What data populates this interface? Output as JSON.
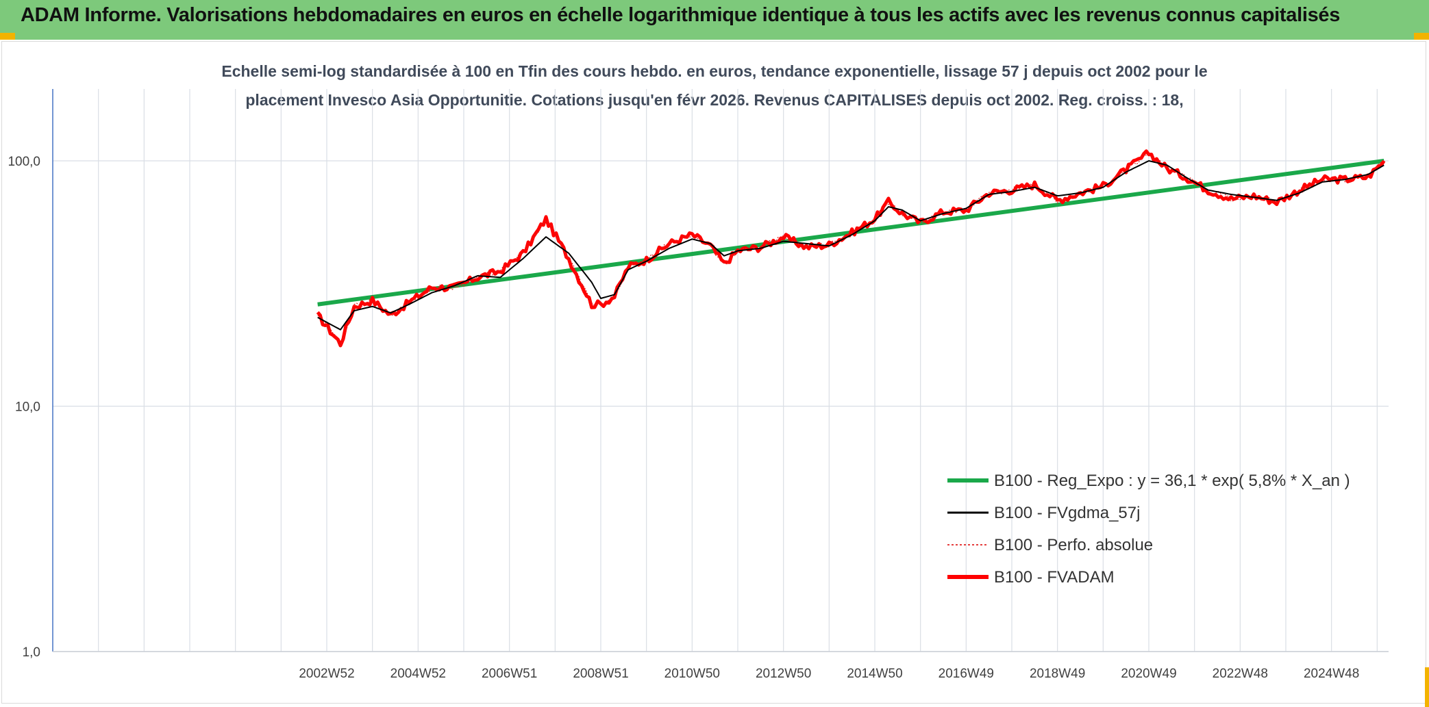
{
  "banner": {
    "title": "ADAM Informe. Valorisations hebdomadaires en euros en échelle logarithmique identique à tous les actifs avec les revenus connus capitalisés"
  },
  "colors": {
    "banner_bg": "#7dc97b",
    "accent_corner": "#f3b300",
    "reg_expo": "#1aa84a",
    "fvgdma": "#000000",
    "perfo": "#e02020",
    "fvadam": "#ff0000",
    "grid": "#d9dee5",
    "axis": "#4472c4"
  },
  "chart_data": {
    "type": "line",
    "subtitle_lines": [
      "Echelle semi-log standardisée à 100 en Tfin des cours hebdo. en euros, tendance exponentielle, lissage 57 j depuis oct 2002 pour le",
      "placement Invesco Asia Opportunitie. Cotations jusqu'en févr 2026. Revenus CAPITALISES depuis oct 2002. Reg. croiss. : 18,"
    ],
    "y_scale": "log",
    "ylim": [
      1,
      100
    ],
    "y_ticks": [
      {
        "value": 100,
        "label": "100,0"
      },
      {
        "value": 10,
        "label": "10,0"
      },
      {
        "value": 1,
        "label": "1,0"
      }
    ],
    "xlim": [
      1997.0,
      2026.25
    ],
    "x_ticks": [
      {
        "value": 2003.0,
        "label": "2002W52"
      },
      {
        "value": 2005.0,
        "label": "2004W52"
      },
      {
        "value": 2007.0,
        "label": "2006W51"
      },
      {
        "value": 2009.0,
        "label": "2008W51"
      },
      {
        "value": 2011.0,
        "label": "2010W50"
      },
      {
        "value": 2013.0,
        "label": "2012W50"
      },
      {
        "value": 2015.0,
        "label": "2014W50"
      },
      {
        "value": 2017.0,
        "label": "2016W49"
      },
      {
        "value": 2019.0,
        "label": "2018W49"
      },
      {
        "value": 2021.0,
        "label": "2020W49"
      },
      {
        "value": 2023.0,
        "label": "2022W48"
      },
      {
        "value": 2025.0,
        "label": "2024W48"
      }
    ],
    "gridlines_x": [
      1998,
      1999,
      2000,
      2001,
      2002,
      2003,
      2004,
      2005,
      2006,
      2007,
      2008,
      2009,
      2010,
      2011,
      2012,
      2013,
      2014,
      2015,
      2016,
      2017,
      2018,
      2019,
      2020,
      2021,
      2022,
      2023,
      2024,
      2025,
      2026
    ],
    "grid": true,
    "legend_position": "lower-right",
    "series": [
      {
        "name": "B100 - Reg_Expo : y = 36,1 * exp( 5,8% *  X_an )",
        "style": "solid-thick",
        "color": "#1aa84a",
        "x": [
          2002.8,
          2026.15
        ],
        "y": [
          26.0,
          100.0
        ]
      },
      {
        "name": "B100 - FVgdma_57j",
        "style": "solid-thin",
        "color": "#000000",
        "x": [
          2002.8,
          2003.3,
          2003.6,
          2004.0,
          2004.4,
          2004.8,
          2005.3,
          2005.8,
          2006.3,
          2006.8,
          2007.3,
          2007.8,
          2008.3,
          2008.8,
          2009.0,
          2009.3,
          2009.6,
          2010.0,
          2010.5,
          2011.0,
          2011.4,
          2011.7,
          2012.0,
          2012.5,
          2013.0,
          2013.5,
          2014.0,
          2014.5,
          2015.0,
          2015.3,
          2015.6,
          2016.0,
          2016.5,
          2017.0,
          2017.5,
          2018.0,
          2018.5,
          2019.0,
          2019.5,
          2020.0,
          2020.5,
          2021.0,
          2021.4,
          2021.8,
          2022.3,
          2022.8,
          2023.3,
          2023.8,
          2024.3,
          2024.8,
          2025.3,
          2025.8,
          2026.15
        ],
        "y": [
          23.0,
          20.5,
          24.5,
          25.5,
          24.0,
          26.0,
          29.0,
          31.0,
          34.0,
          33.5,
          40.0,
          49.0,
          42.0,
          32.0,
          27.5,
          28.5,
          36.0,
          39.0,
          44.0,
          48.0,
          46.0,
          41.0,
          43.0,
          44.0,
          47.0,
          46.0,
          45.0,
          50.0,
          57.0,
          65.0,
          63.0,
          57.0,
          61.0,
          64.0,
          73.0,
          75.0,
          78.0,
          72.0,
          74.0,
          78.0,
          90.0,
          100.0,
          96.0,
          86.0,
          76.0,
          73.0,
          71.0,
          69.0,
          74.0,
          82.0,
          84.0,
          88.0,
          96.0
        ]
      },
      {
        "name": "B100 - Perfo. absolue",
        "style": "dotted",
        "color": "#e02020",
        "x": [
          2002.8,
          2003.3,
          2003.6,
          2004.0,
          2004.4,
          2004.8,
          2005.3,
          2005.8,
          2006.3,
          2006.8,
          2007.3,
          2007.8,
          2008.3,
          2008.8,
          2009.0,
          2009.3,
          2009.6,
          2010.0,
          2010.5,
          2011.0,
          2011.4,
          2011.7,
          2012.0,
          2012.5,
          2013.0,
          2013.5,
          2014.0,
          2014.5,
          2015.0,
          2015.3,
          2015.6,
          2016.0,
          2016.5,
          2017.0,
          2017.5,
          2018.0,
          2018.5,
          2019.0,
          2019.5,
          2020.0,
          2020.5,
          2021.0,
          2021.4,
          2021.8,
          2022.3,
          2022.8,
          2023.3,
          2023.8,
          2024.3,
          2024.8,
          2025.3,
          2025.8,
          2026.15
        ],
        "y": [
          23.5,
          18.0,
          25.5,
          27.0,
          23.5,
          26.5,
          30.5,
          30.5,
          33.5,
          35.5,
          42.0,
          58.0,
          40.0,
          26.0,
          26.0,
          28.0,
          37.0,
          39.5,
          46.0,
          50.0,
          45.0,
          38.0,
          43.0,
          44.5,
          49.0,
          44.5,
          45.5,
          51.0,
          58.0,
          68.0,
          61.0,
          56.0,
          62.0,
          63.0,
          74.0,
          76.0,
          80.0,
          69.0,
          74.0,
          79.0,
          92.0,
          108.0,
          93.0,
          86.0,
          76.0,
          70.0,
          72.0,
          68.0,
          76.0,
          84.0,
          84.0,
          86.0,
          100.0
        ]
      },
      {
        "name": "B100 - FVADAM",
        "style": "solid-thick",
        "color": "#ff0000",
        "x": [
          2002.8,
          2003.3,
          2003.6,
          2004.0,
          2004.4,
          2004.8,
          2005.3,
          2005.8,
          2006.3,
          2006.8,
          2007.3,
          2007.8,
          2008.3,
          2008.8,
          2009.0,
          2009.3,
          2009.6,
          2010.0,
          2010.5,
          2011.0,
          2011.4,
          2011.7,
          2012.0,
          2012.5,
          2013.0,
          2013.5,
          2014.0,
          2014.5,
          2015.0,
          2015.3,
          2015.6,
          2016.0,
          2016.5,
          2017.0,
          2017.5,
          2018.0,
          2018.5,
          2019.0,
          2019.5,
          2020.0,
          2020.5,
          2021.0,
          2021.4,
          2021.8,
          2022.3,
          2022.8,
          2023.3,
          2023.8,
          2024.3,
          2024.8,
          2025.3,
          2025.8,
          2026.15
        ],
        "y": [
          23.5,
          18.0,
          25.5,
          27.0,
          23.5,
          26.5,
          30.5,
          30.5,
          33.5,
          35.5,
          42.0,
          58.0,
          40.0,
          26.0,
          26.0,
          28.0,
          37.0,
          39.5,
          46.0,
          50.0,
          45.0,
          38.0,
          43.0,
          44.5,
          49.0,
          44.5,
          45.5,
          51.0,
          58.0,
          68.0,
          61.0,
          56.0,
          62.0,
          63.0,
          74.0,
          76.0,
          80.0,
          69.0,
          74.0,
          79.0,
          92.0,
          108.0,
          93.0,
          86.0,
          76.0,
          70.0,
          72.0,
          68.0,
          76.0,
          84.0,
          84.0,
          86.0,
          100.0
        ]
      }
    ]
  }
}
